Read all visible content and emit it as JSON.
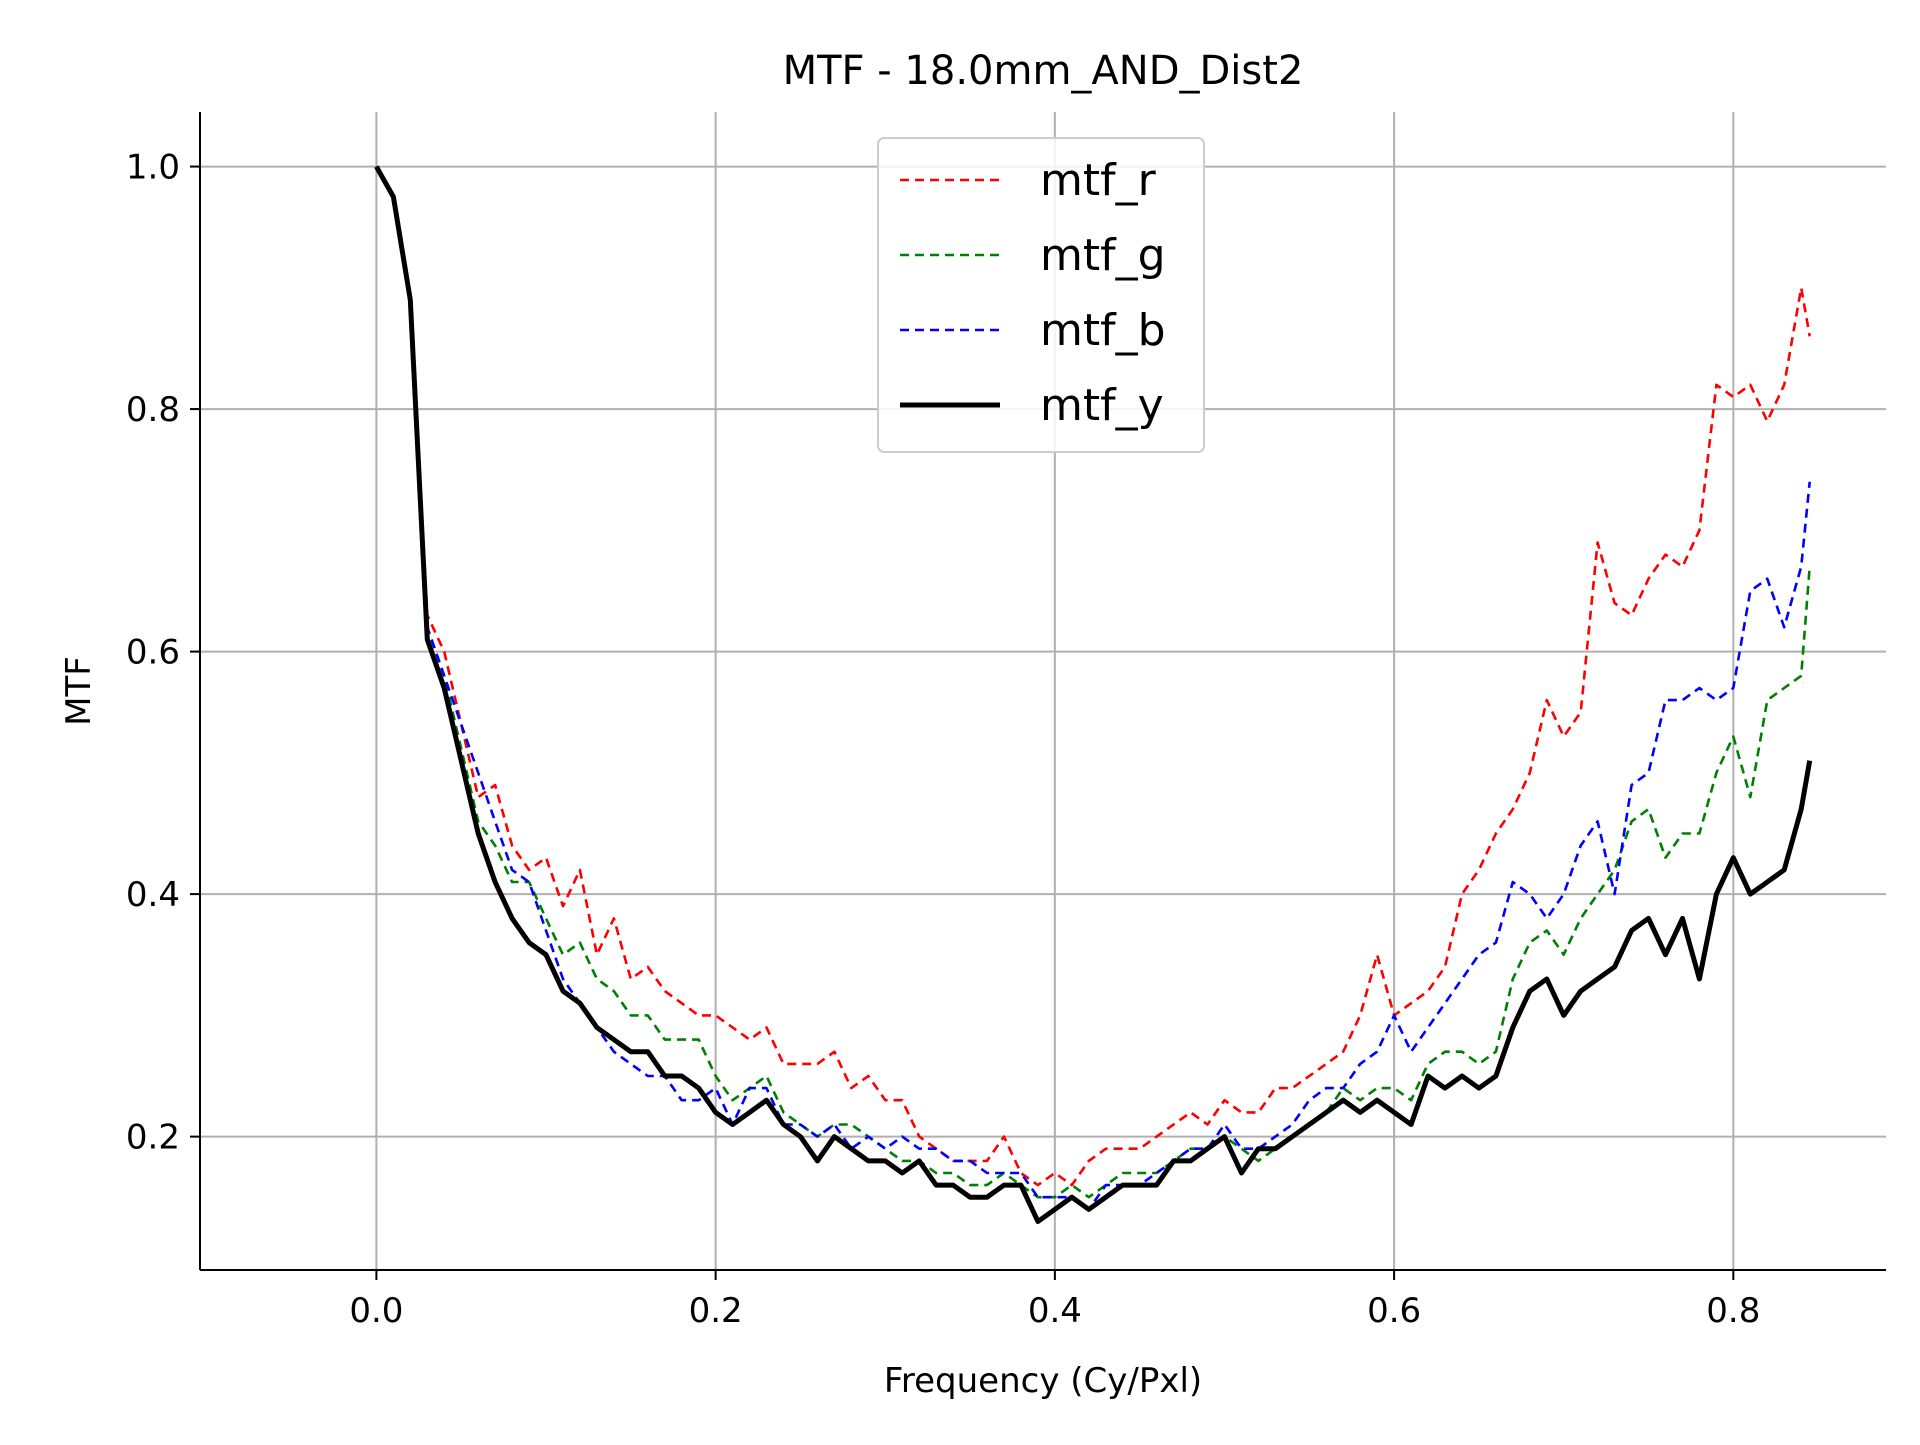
{
  "chart_data": {
    "type": "line",
    "title": "MTF - 18.0mm_AND_Dist2",
    "xlabel": "Frequency (Cy/Pxl)",
    "ylabel": "MTF",
    "xlim": [
      -0.104,
      0.89
    ],
    "ylim": [
      0.09,
      1.045
    ],
    "xticks": [
      0.0,
      0.2,
      0.4,
      0.6,
      0.8
    ],
    "xtick_labels": [
      "0.0",
      "0.2",
      "0.4",
      "0.6",
      "0.8"
    ],
    "yticks": [
      0.2,
      0.4,
      0.6,
      0.8,
      1.0
    ],
    "ytick_labels": [
      "0.2",
      "0.4",
      "0.6",
      "0.8",
      "1.0"
    ],
    "grid": true,
    "legend_position": "top-center",
    "series": [
      {
        "name": "mtf_r",
        "color": "#ff0000",
        "style": "dashed",
        "x": [
          0.0,
          0.01,
          0.02,
          0.03,
          0.04,
          0.05,
          0.06,
          0.07,
          0.08,
          0.09,
          0.1,
          0.11,
          0.12,
          0.13,
          0.14,
          0.15,
          0.16,
          0.17,
          0.18,
          0.19,
          0.2,
          0.21,
          0.22,
          0.23,
          0.24,
          0.25,
          0.26,
          0.27,
          0.28,
          0.29,
          0.3,
          0.31,
          0.32,
          0.33,
          0.34,
          0.35,
          0.36,
          0.37,
          0.38,
          0.39,
          0.4,
          0.41,
          0.42,
          0.43,
          0.44,
          0.45,
          0.46,
          0.47,
          0.48,
          0.49,
          0.5,
          0.51,
          0.52,
          0.53,
          0.54,
          0.55,
          0.56,
          0.57,
          0.58,
          0.59,
          0.6,
          0.61,
          0.62,
          0.63,
          0.64,
          0.65,
          0.66,
          0.67,
          0.68,
          0.69,
          0.7,
          0.71,
          0.72,
          0.73,
          0.74,
          0.75,
          0.76,
          0.77,
          0.78,
          0.79,
          0.8,
          0.81,
          0.82,
          0.83,
          0.84,
          0.845
        ],
        "y": [
          1.0,
          0.975,
          0.89,
          0.63,
          0.6,
          0.54,
          0.48,
          0.49,
          0.44,
          0.42,
          0.43,
          0.39,
          0.42,
          0.35,
          0.38,
          0.33,
          0.34,
          0.32,
          0.31,
          0.3,
          0.3,
          0.29,
          0.28,
          0.29,
          0.26,
          0.26,
          0.26,
          0.27,
          0.24,
          0.25,
          0.23,
          0.23,
          0.2,
          0.19,
          0.18,
          0.18,
          0.18,
          0.2,
          0.17,
          0.16,
          0.17,
          0.16,
          0.18,
          0.19,
          0.19,
          0.19,
          0.2,
          0.21,
          0.22,
          0.21,
          0.23,
          0.22,
          0.22,
          0.24,
          0.24,
          0.25,
          0.26,
          0.27,
          0.3,
          0.35,
          0.3,
          0.31,
          0.32,
          0.34,
          0.4,
          0.42,
          0.45,
          0.47,
          0.5,
          0.56,
          0.53,
          0.55,
          0.69,
          0.64,
          0.63,
          0.66,
          0.68,
          0.67,
          0.7,
          0.82,
          0.81,
          0.82,
          0.79,
          0.82,
          0.9,
          0.86
        ]
      },
      {
        "name": "mtf_g",
        "color": "#008000",
        "style": "dashed",
        "x": [
          0.0,
          0.01,
          0.02,
          0.03,
          0.04,
          0.05,
          0.06,
          0.07,
          0.08,
          0.09,
          0.1,
          0.11,
          0.12,
          0.13,
          0.14,
          0.15,
          0.16,
          0.17,
          0.18,
          0.19,
          0.2,
          0.21,
          0.22,
          0.23,
          0.24,
          0.25,
          0.26,
          0.27,
          0.28,
          0.29,
          0.3,
          0.31,
          0.32,
          0.33,
          0.34,
          0.35,
          0.36,
          0.37,
          0.38,
          0.39,
          0.4,
          0.41,
          0.42,
          0.43,
          0.44,
          0.45,
          0.46,
          0.47,
          0.48,
          0.49,
          0.5,
          0.51,
          0.52,
          0.53,
          0.54,
          0.55,
          0.56,
          0.57,
          0.58,
          0.59,
          0.6,
          0.61,
          0.62,
          0.63,
          0.64,
          0.65,
          0.66,
          0.67,
          0.68,
          0.69,
          0.7,
          0.71,
          0.72,
          0.73,
          0.74,
          0.75,
          0.76,
          0.77,
          0.78,
          0.79,
          0.8,
          0.81,
          0.82,
          0.83,
          0.84,
          0.845
        ],
        "y": [
          1.0,
          0.975,
          0.89,
          0.62,
          0.58,
          0.52,
          0.46,
          0.44,
          0.41,
          0.41,
          0.38,
          0.35,
          0.36,
          0.33,
          0.32,
          0.3,
          0.3,
          0.28,
          0.28,
          0.28,
          0.25,
          0.23,
          0.24,
          0.25,
          0.22,
          0.21,
          0.2,
          0.21,
          0.21,
          0.2,
          0.19,
          0.18,
          0.18,
          0.17,
          0.17,
          0.16,
          0.16,
          0.17,
          0.16,
          0.15,
          0.15,
          0.16,
          0.15,
          0.16,
          0.17,
          0.17,
          0.17,
          0.18,
          0.19,
          0.19,
          0.2,
          0.19,
          0.18,
          0.19,
          0.2,
          0.21,
          0.22,
          0.24,
          0.23,
          0.24,
          0.24,
          0.23,
          0.26,
          0.27,
          0.27,
          0.26,
          0.27,
          0.33,
          0.36,
          0.37,
          0.35,
          0.38,
          0.4,
          0.42,
          0.46,
          0.47,
          0.43,
          0.45,
          0.45,
          0.5,
          0.53,
          0.48,
          0.56,
          0.57,
          0.58,
          0.67
        ]
      },
      {
        "name": "mtf_b",
        "color": "#0000ff",
        "style": "dashed",
        "x": [
          0.0,
          0.01,
          0.02,
          0.03,
          0.04,
          0.05,
          0.06,
          0.07,
          0.08,
          0.09,
          0.1,
          0.11,
          0.12,
          0.13,
          0.14,
          0.15,
          0.16,
          0.17,
          0.18,
          0.19,
          0.2,
          0.21,
          0.22,
          0.23,
          0.24,
          0.25,
          0.26,
          0.27,
          0.28,
          0.29,
          0.3,
          0.31,
          0.32,
          0.33,
          0.34,
          0.35,
          0.36,
          0.37,
          0.38,
          0.39,
          0.4,
          0.41,
          0.42,
          0.43,
          0.44,
          0.45,
          0.46,
          0.47,
          0.48,
          0.49,
          0.5,
          0.51,
          0.52,
          0.53,
          0.54,
          0.55,
          0.56,
          0.57,
          0.58,
          0.59,
          0.6,
          0.61,
          0.62,
          0.63,
          0.64,
          0.65,
          0.66,
          0.67,
          0.68,
          0.69,
          0.7,
          0.71,
          0.72,
          0.73,
          0.74,
          0.75,
          0.76,
          0.77,
          0.78,
          0.79,
          0.8,
          0.81,
          0.82,
          0.83,
          0.84,
          0.845
        ],
        "y": [
          1.0,
          0.975,
          0.89,
          0.62,
          0.58,
          0.54,
          0.5,
          0.46,
          0.42,
          0.41,
          0.37,
          0.33,
          0.31,
          0.29,
          0.27,
          0.26,
          0.25,
          0.25,
          0.23,
          0.23,
          0.24,
          0.21,
          0.24,
          0.24,
          0.21,
          0.21,
          0.2,
          0.21,
          0.19,
          0.2,
          0.19,
          0.2,
          0.19,
          0.19,
          0.18,
          0.18,
          0.17,
          0.17,
          0.17,
          0.15,
          0.15,
          0.15,
          0.14,
          0.16,
          0.16,
          0.16,
          0.17,
          0.18,
          0.19,
          0.19,
          0.21,
          0.19,
          0.19,
          0.2,
          0.21,
          0.23,
          0.24,
          0.24,
          0.26,
          0.27,
          0.3,
          0.27,
          0.29,
          0.31,
          0.33,
          0.35,
          0.36,
          0.41,
          0.4,
          0.38,
          0.4,
          0.44,
          0.46,
          0.4,
          0.49,
          0.5,
          0.56,
          0.56,
          0.57,
          0.56,
          0.57,
          0.65,
          0.66,
          0.62,
          0.67,
          0.74
        ]
      },
      {
        "name": "mtf_y",
        "color": "#000000",
        "style": "solid",
        "x": [
          0.0,
          0.01,
          0.02,
          0.03,
          0.04,
          0.05,
          0.06,
          0.07,
          0.08,
          0.09,
          0.1,
          0.11,
          0.12,
          0.13,
          0.14,
          0.15,
          0.16,
          0.17,
          0.18,
          0.19,
          0.2,
          0.21,
          0.22,
          0.23,
          0.24,
          0.25,
          0.26,
          0.27,
          0.28,
          0.29,
          0.3,
          0.31,
          0.32,
          0.33,
          0.34,
          0.35,
          0.36,
          0.37,
          0.38,
          0.39,
          0.4,
          0.41,
          0.42,
          0.43,
          0.44,
          0.45,
          0.46,
          0.47,
          0.48,
          0.49,
          0.5,
          0.51,
          0.52,
          0.53,
          0.54,
          0.55,
          0.56,
          0.57,
          0.58,
          0.59,
          0.6,
          0.61,
          0.62,
          0.63,
          0.64,
          0.65,
          0.66,
          0.67,
          0.68,
          0.69,
          0.7,
          0.71,
          0.72,
          0.73,
          0.74,
          0.75,
          0.76,
          0.77,
          0.78,
          0.79,
          0.8,
          0.81,
          0.82,
          0.83,
          0.84,
          0.845
        ],
        "y": [
          1.0,
          0.975,
          0.89,
          0.61,
          0.57,
          0.51,
          0.45,
          0.41,
          0.38,
          0.36,
          0.35,
          0.32,
          0.31,
          0.29,
          0.28,
          0.27,
          0.27,
          0.25,
          0.25,
          0.24,
          0.22,
          0.21,
          0.22,
          0.23,
          0.21,
          0.2,
          0.18,
          0.2,
          0.19,
          0.18,
          0.18,
          0.17,
          0.18,
          0.16,
          0.16,
          0.15,
          0.15,
          0.16,
          0.16,
          0.13,
          0.14,
          0.15,
          0.14,
          0.15,
          0.16,
          0.16,
          0.16,
          0.18,
          0.18,
          0.19,
          0.2,
          0.17,
          0.19,
          0.19,
          0.2,
          0.21,
          0.22,
          0.23,
          0.22,
          0.23,
          0.22,
          0.21,
          0.25,
          0.24,
          0.25,
          0.24,
          0.25,
          0.29,
          0.32,
          0.33,
          0.3,
          0.32,
          0.33,
          0.34,
          0.37,
          0.38,
          0.35,
          0.38,
          0.33,
          0.4,
          0.43,
          0.4,
          0.41,
          0.42,
          0.47,
          0.51
        ]
      }
    ]
  }
}
